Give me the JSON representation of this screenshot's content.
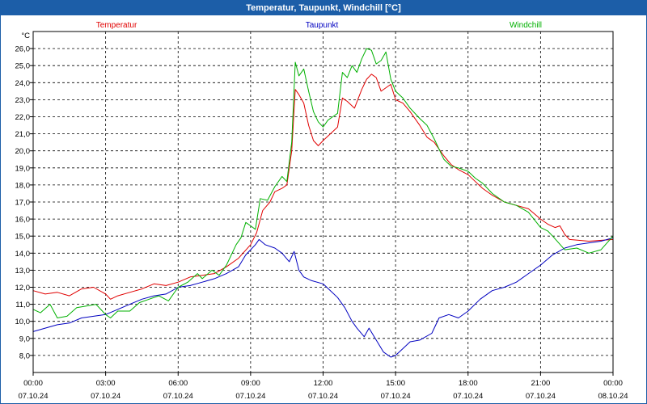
{
  "window": {
    "title": "Temperatur, Taupunkt, Windchill [°C]"
  },
  "chart_data": {
    "type": "line",
    "title": "Temperatur, Taupunkt, Windchill [°C]",
    "ylabel": "°C",
    "xlabel": "",
    "ylim": [
      7.0,
      27.0
    ],
    "xlim": [
      0,
      24
    ],
    "grid": true,
    "legend_placement": "top",
    "y_ticks": [
      "8,0",
      "9,0",
      "10,0",
      "11,0",
      "12,0",
      "13,0",
      "14,0",
      "15,0",
      "16,0",
      "17,0",
      "18,0",
      "19,0",
      "20,0",
      "21,0",
      "22,0",
      "23,0",
      "24,0",
      "25,0",
      "26,0"
    ],
    "x_ticks": [
      {
        "time": "00:00",
        "date": "07.10.24"
      },
      {
        "time": "03:00",
        "date": "07.10.24"
      },
      {
        "time": "06:00",
        "date": "07.10.24"
      },
      {
        "time": "09:00",
        "date": "07.10.24"
      },
      {
        "time": "12:00",
        "date": "07.10.24"
      },
      {
        "time": "15:00",
        "date": "07.10.24"
      },
      {
        "time": "18:00",
        "date": "07.10.24"
      },
      {
        "time": "21:00",
        "date": "07.10.24"
      },
      {
        "time": "00:00",
        "date": "08.10.24"
      }
    ],
    "series": [
      {
        "name": "Temperatur",
        "color": "#e00000",
        "points": [
          [
            0,
            11.8
          ],
          [
            0.5,
            11.6
          ],
          [
            1,
            11.7
          ],
          [
            1.5,
            11.5
          ],
          [
            2,
            11.9
          ],
          [
            2.5,
            12.0
          ],
          [
            3,
            11.6
          ],
          [
            3.2,
            11.3
          ],
          [
            3.5,
            11.5
          ],
          [
            4,
            11.7
          ],
          [
            4.5,
            11.9
          ],
          [
            5,
            12.2
          ],
          [
            5.5,
            12.1
          ],
          [
            6,
            12.3
          ],
          [
            6.5,
            12.6
          ],
          [
            7,
            12.7
          ],
          [
            7.5,
            12.8
          ],
          [
            8,
            13.2
          ],
          [
            8.5,
            13.7
          ],
          [
            9,
            14.5
          ],
          [
            9.25,
            15.2
          ],
          [
            9.5,
            16.5
          ],
          [
            9.8,
            17.0
          ],
          [
            10,
            17.6
          ],
          [
            10.3,
            17.8
          ],
          [
            10.5,
            18.0
          ],
          [
            10.7,
            20.0
          ],
          [
            10.85,
            23.6
          ],
          [
            11,
            23.3
          ],
          [
            11.2,
            22.8
          ],
          [
            11.4,
            21.5
          ],
          [
            11.6,
            20.6
          ],
          [
            11.8,
            20.3
          ],
          [
            12,
            20.6
          ],
          [
            12.3,
            21.0
          ],
          [
            12.6,
            21.4
          ],
          [
            12.8,
            23.1
          ],
          [
            13,
            22.9
          ],
          [
            13.3,
            22.5
          ],
          [
            13.6,
            23.6
          ],
          [
            13.8,
            24.2
          ],
          [
            14,
            24.5
          ],
          [
            14.2,
            24.3
          ],
          [
            14.4,
            23.5
          ],
          [
            14.8,
            23.9
          ],
          [
            15,
            23.0
          ],
          [
            15.3,
            22.8
          ],
          [
            15.6,
            22.3
          ],
          [
            16,
            21.5
          ],
          [
            16.3,
            20.8
          ],
          [
            16.6,
            20.5
          ],
          [
            17,
            19.7
          ],
          [
            17.3,
            19.2
          ],
          [
            17.6,
            18.9
          ],
          [
            18,
            18.6
          ],
          [
            18.3,
            18.2
          ],
          [
            18.6,
            17.8
          ],
          [
            19,
            17.4
          ],
          [
            19.5,
            17.0
          ],
          [
            20,
            16.8
          ],
          [
            20.5,
            16.6
          ],
          [
            21,
            16.0
          ],
          [
            21.3,
            15.7
          ],
          [
            21.6,
            15.5
          ],
          [
            21.8,
            15.6
          ],
          [
            22,
            15.1
          ],
          [
            22.2,
            14.8
          ],
          [
            23,
            14.7
          ],
          [
            24,
            14.8
          ]
        ]
      },
      {
        "name": "Taupunkt",
        "color": "#0000c0",
        "points": [
          [
            0,
            9.4
          ],
          [
            0.5,
            9.6
          ],
          [
            1,
            9.8
          ],
          [
            1.5,
            9.9
          ],
          [
            2,
            10.2
          ],
          [
            2.5,
            10.3
          ],
          [
            3,
            10.4
          ],
          [
            3.5,
            10.7
          ],
          [
            4,
            11.0
          ],
          [
            4.5,
            11.3
          ],
          [
            5,
            11.5
          ],
          [
            5.5,
            11.6
          ],
          [
            6,
            12.0
          ],
          [
            6.5,
            12.1
          ],
          [
            7,
            12.3
          ],
          [
            7.5,
            12.5
          ],
          [
            8,
            12.8
          ],
          [
            8.5,
            13.2
          ],
          [
            8.8,
            13.9
          ],
          [
            9,
            14.2
          ],
          [
            9.2,
            14.5
          ],
          [
            9.35,
            14.8
          ],
          [
            9.6,
            14.5
          ],
          [
            10,
            14.3
          ],
          [
            10.3,
            14.0
          ],
          [
            10.6,
            13.5
          ],
          [
            10.8,
            14.1
          ],
          [
            11,
            13.0
          ],
          [
            11.2,
            12.6
          ],
          [
            11.5,
            12.4
          ],
          [
            12,
            12.2
          ],
          [
            12.3,
            11.8
          ],
          [
            12.6,
            11.4
          ],
          [
            12.9,
            10.8
          ],
          [
            13.2,
            10.0
          ],
          [
            13.4,
            9.6
          ],
          [
            13.7,
            9.1
          ],
          [
            13.9,
            9.6
          ],
          [
            14.2,
            8.9
          ],
          [
            14.5,
            8.2
          ],
          [
            14.8,
            7.9
          ],
          [
            15,
            8.0
          ],
          [
            15.3,
            8.4
          ],
          [
            15.6,
            8.8
          ],
          [
            16,
            8.9
          ],
          [
            16.5,
            9.3
          ],
          [
            16.8,
            10.2
          ],
          [
            17.2,
            10.4
          ],
          [
            17.6,
            10.2
          ],
          [
            18,
            10.6
          ],
          [
            18.5,
            11.3
          ],
          [
            19,
            11.8
          ],
          [
            19.5,
            12.0
          ],
          [
            20,
            12.3
          ],
          [
            20.5,
            12.8
          ],
          [
            21,
            13.3
          ],
          [
            21.5,
            13.9
          ],
          [
            22,
            14.3
          ],
          [
            22.5,
            14.5
          ],
          [
            23,
            14.6
          ],
          [
            23.5,
            14.7
          ],
          [
            24,
            14.9
          ]
        ]
      },
      {
        "name": "Windchill",
        "color": "#00b000",
        "points": [
          [
            0,
            10.7
          ],
          [
            0.3,
            10.5
          ],
          [
            0.7,
            11.0
          ],
          [
            1,
            10.2
          ],
          [
            1.4,
            10.3
          ],
          [
            1.8,
            10.8
          ],
          [
            2.2,
            10.9
          ],
          [
            2.6,
            11.0
          ],
          [
            3,
            10.4
          ],
          [
            3.2,
            10.2
          ],
          [
            3.5,
            10.6
          ],
          [
            4,
            10.6
          ],
          [
            4.4,
            11.1
          ],
          [
            4.8,
            11.3
          ],
          [
            5.2,
            11.5
          ],
          [
            5.6,
            11.2
          ],
          [
            6,
            12.0
          ],
          [
            6.4,
            12.3
          ],
          [
            6.8,
            12.8
          ],
          [
            7,
            12.5
          ],
          [
            7.4,
            13.0
          ],
          [
            7.7,
            12.7
          ],
          [
            8,
            13.3
          ],
          [
            8.4,
            14.5
          ],
          [
            8.6,
            14.9
          ],
          [
            8.8,
            15.8
          ],
          [
            9,
            15.6
          ],
          [
            9.2,
            15.4
          ],
          [
            9.4,
            17.2
          ],
          [
            9.7,
            17.1
          ],
          [
            10,
            17.9
          ],
          [
            10.3,
            18.5
          ],
          [
            10.5,
            18.2
          ],
          [
            10.7,
            20.5
          ],
          [
            10.85,
            25.2
          ],
          [
            11,
            24.4
          ],
          [
            11.2,
            24.8
          ],
          [
            11.4,
            23.5
          ],
          [
            11.6,
            22.3
          ],
          [
            11.8,
            21.7
          ],
          [
            12,
            21.4
          ],
          [
            12.2,
            21.8
          ],
          [
            12.4,
            22.0
          ],
          [
            12.6,
            22.2
          ],
          [
            12.8,
            24.6
          ],
          [
            13,
            24.3
          ],
          [
            13.2,
            25.0
          ],
          [
            13.4,
            24.6
          ],
          [
            13.6,
            25.4
          ],
          [
            13.8,
            26.0
          ],
          [
            14,
            25.9
          ],
          [
            14.2,
            25.1
          ],
          [
            14.4,
            25.3
          ],
          [
            14.6,
            25.8
          ],
          [
            14.8,
            24.2
          ],
          [
            15,
            23.5
          ],
          [
            15.3,
            23.1
          ],
          [
            15.6,
            22.5
          ],
          [
            16,
            21.9
          ],
          [
            16.3,
            21.5
          ],
          [
            16.6,
            20.7
          ],
          [
            17,
            19.5
          ],
          [
            17.3,
            19.1
          ],
          [
            17.6,
            19.0
          ],
          [
            18,
            18.8
          ],
          [
            18.3,
            18.4
          ],
          [
            18.6,
            18.1
          ],
          [
            19,
            17.5
          ],
          [
            19.5,
            17.0
          ],
          [
            20,
            16.8
          ],
          [
            20.5,
            16.4
          ],
          [
            21,
            15.5
          ],
          [
            21.3,
            15.3
          ],
          [
            21.5,
            15.0
          ],
          [
            22,
            14.2
          ],
          [
            22.5,
            14.3
          ],
          [
            23,
            14.0
          ],
          [
            23.5,
            14.2
          ],
          [
            24,
            15.0
          ]
        ]
      }
    ]
  }
}
